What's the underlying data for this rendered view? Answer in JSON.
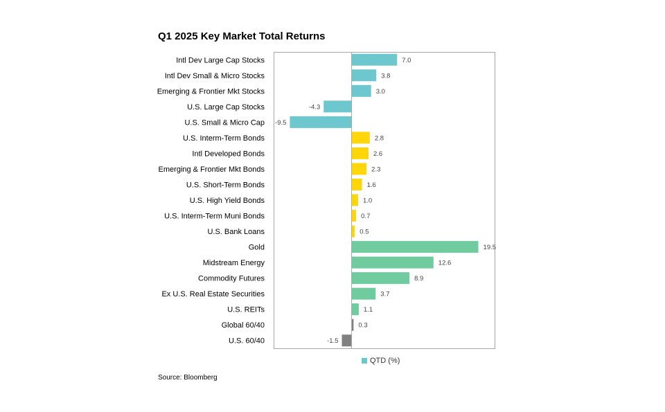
{
  "chart_data": {
    "type": "bar",
    "orientation": "horizontal",
    "title": "Q1 2025 Key Market Total Returns",
    "categories": [
      "Intl Dev Large Cap Stocks",
      "Intl Dev Small & Micro Stocks",
      "Emerging & Frontier Mkt Stocks",
      "U.S. Large Cap Stocks",
      "U.S. Small & Micro Cap",
      "U.S. Interm-Term Bonds",
      "Intl Developed Bonds",
      "Emerging & Frontier Mkt Bonds",
      "U.S. Short-Term Bonds",
      "U.S. High Yield Bonds",
      "U.S. Interm-Term Muni Bonds",
      "U.S. Bank Loans",
      "Gold",
      "Midstream Energy",
      "Commodity Futures",
      "Ex U.S. Real Estate Securities",
      "U.S. REITs",
      "Global 60/40",
      "U.S. 60/40"
    ],
    "series": [
      {
        "name": "QTD (%)",
        "values": [
          7.0,
          3.8,
          3.0,
          -4.3,
          -9.5,
          2.8,
          2.6,
          2.3,
          1.6,
          1.0,
          0.7,
          0.5,
          19.5,
          12.6,
          8.9,
          3.7,
          1.1,
          0.3,
          -1.5
        ]
      }
    ],
    "value_labels": [
      "7.0",
      "3.8",
      "3.0",
      "-4.3",
      "-9.5",
      "2.8",
      "2.6",
      "2.3",
      "1.6",
      "1.0",
      "0.7",
      "0.5",
      "19.5",
      "12.6",
      "8.9",
      "3.7",
      "1.1",
      "0.3",
      "-1.5"
    ],
    "bar_colors": [
      "#6CC7CF",
      "#6CC7CF",
      "#6CC7CF",
      "#6CC7CF",
      "#6CC7CF",
      "#FFD60A",
      "#FFD60A",
      "#FFD60A",
      "#FFD60A",
      "#FFD60A",
      "#FFD60A",
      "#FFD60A",
      "#70CC9F",
      "#70CC9F",
      "#70CC9F",
      "#70CC9F",
      "#70CC9F",
      "#808080",
      "#808080"
    ],
    "xlim": [
      -12,
      22
    ],
    "grid": false,
    "legend": {
      "label": "QTD (%)",
      "color": "#6CC7CF",
      "placement": "bottom"
    },
    "source": "Source: Bloomberg"
  }
}
